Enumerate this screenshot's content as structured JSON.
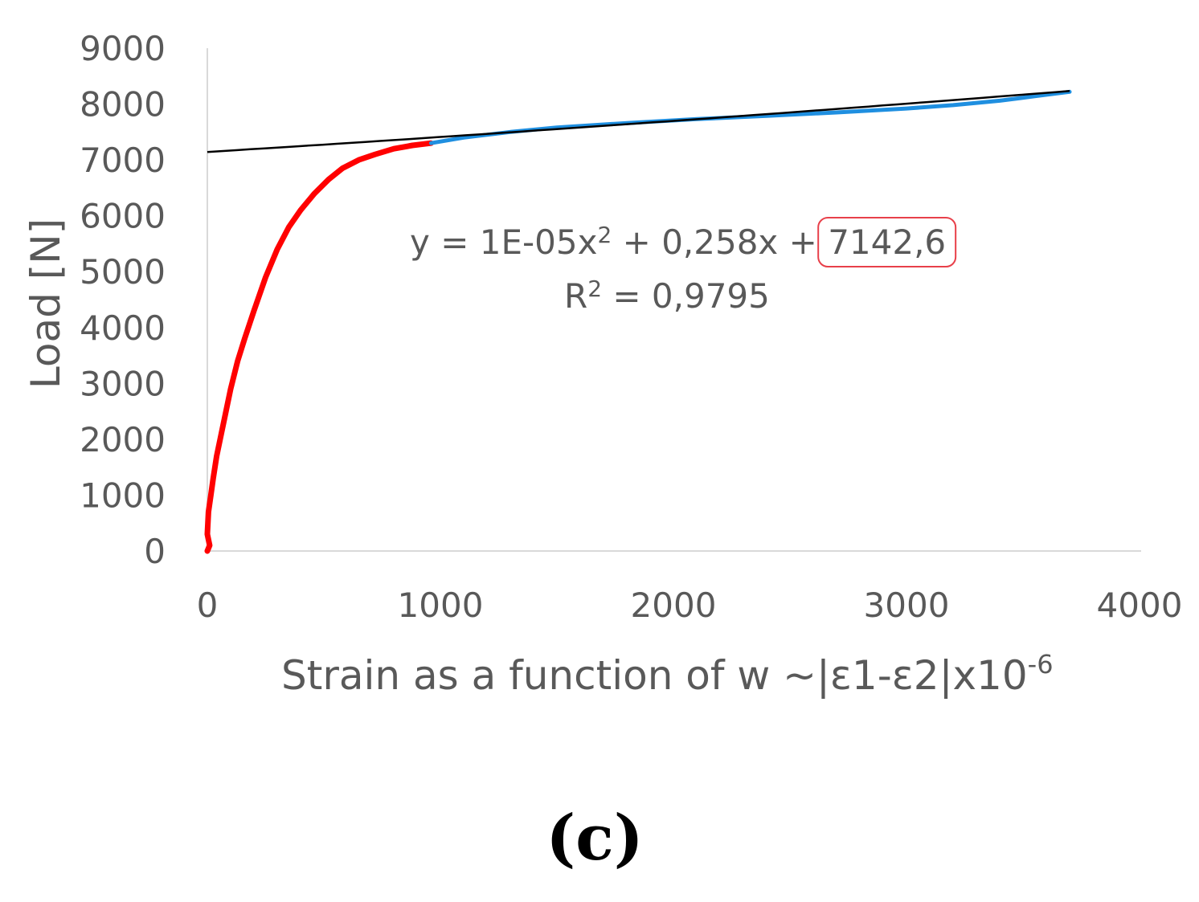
{
  "chart_data": {
    "type": "line",
    "xlabel_main": "Strain as a function of w ~|ε1-ε2|x10",
    "xlabel_sup": "-6",
    "ylabel": "Load [N]",
    "xlim": [
      0,
      4000
    ],
    "ylim": [
      0,
      9000
    ],
    "x_ticks": [
      "0",
      "1000",
      "2000",
      "3000",
      "4000"
    ],
    "y_ticks": [
      "0",
      "1000",
      "2000",
      "3000",
      "4000",
      "5000",
      "6000",
      "7000",
      "8000",
      "9000"
    ],
    "grid": false,
    "legend": "none",
    "series": [
      {
        "color": "#ff0000",
        "x": [
          0,
          10,
          0,
          5,
          15,
          25,
          40,
          60,
          80,
          100,
          130,
          160,
          200,
          250,
          300,
          350,
          400,
          460,
          520,
          580,
          650,
          720,
          800,
          880,
          960
        ],
        "y": [
          0,
          100,
          300,
          700,
          1000,
          1300,
          1700,
          2100,
          2500,
          2900,
          3400,
          3800,
          4300,
          4900,
          5400,
          5800,
          6100,
          6400,
          6650,
          6850,
          7000,
          7100,
          7200,
          7260,
          7300
        ]
      },
      {
        "color": "#1f8fe0",
        "x": [
          960,
          1100,
          1300,
          1500,
          1800,
          2100,
          2400,
          2700,
          3000,
          3200,
          3400,
          3550,
          3700
        ],
        "y": [
          7300,
          7400,
          7500,
          7580,
          7660,
          7730,
          7790,
          7850,
          7920,
          7980,
          8060,
          8140,
          8220
        ]
      }
    ],
    "trendline": {
      "color": "#000000",
      "a": 1e-05,
      "b": 0.258,
      "c": 7142.6,
      "x_range": [
        0,
        3700
      ]
    },
    "trend_equation_prefix": "y = 1E-05x",
    "trend_equation_sup": "2",
    "trend_equation_mid": " + 0,258x + ",
    "trend_equation_highlight": "7142,6",
    "r2_prefix": "R",
    "r2_sup": "2",
    "r2_suffix": " = 0,9795",
    "highlight_color": "#e8404a",
    "axis_color": "#d9d9d9",
    "panel_label": "(c)"
  }
}
